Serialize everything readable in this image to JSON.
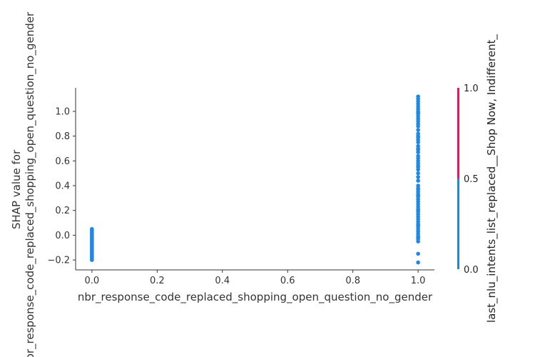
{
  "chart_data": {
    "type": "scatter",
    "title": "",
    "xlabel": "nbr_response_code_replaced_shopping_open_question_no_gender",
    "ylabel_lines": [
      "SHAP value for",
      "nbr_response_code_replaced_shopping_open_question_no_gender"
    ],
    "xlim": [
      -0.05,
      1.05
    ],
    "ylim": [
      -0.28,
      1.19
    ],
    "xticks": [
      "0.0",
      "0.2",
      "0.4",
      "0.6",
      "0.8",
      "1.0"
    ],
    "xtick_values": [
      0.0,
      0.2,
      0.4,
      0.6,
      0.8,
      1.0
    ],
    "yticks": [
      "−0.2",
      "0.0",
      "0.2",
      "0.4",
      "0.6",
      "0.8",
      "1.0"
    ],
    "ytick_values": [
      -0.2,
      0.0,
      0.2,
      0.4,
      0.6,
      0.8,
      1.0
    ],
    "grid": false,
    "point_color": "#1e88e5",
    "series": [
      {
        "x": [
          0,
          0,
          0,
          0,
          0,
          0,
          0,
          0,
          0,
          0,
          0,
          0,
          0,
          0,
          0,
          0,
          0,
          0,
          0,
          0,
          0,
          0,
          0,
          0,
          0,
          0
        ],
        "y": [
          0.05,
          0.04,
          0.03,
          0.02,
          0.01,
          0.0,
          -0.01,
          -0.02,
          -0.03,
          -0.04,
          -0.05,
          -0.06,
          -0.07,
          -0.08,
          -0.09,
          -0.1,
          -0.11,
          -0.12,
          -0.13,
          -0.14,
          -0.15,
          -0.16,
          -0.17,
          -0.18,
          -0.19,
          -0.2
        ]
      },
      {
        "x": [
          1,
          1,
          1,
          1,
          1,
          1,
          1,
          1,
          1,
          1,
          1,
          1,
          1,
          1,
          1,
          1,
          1,
          1,
          1,
          1,
          1,
          1,
          1,
          1,
          1,
          1,
          1,
          1,
          1,
          1,
          1,
          1,
          1,
          1,
          1,
          1,
          1,
          1,
          1,
          1,
          1,
          1,
          1,
          1,
          1,
          1,
          1,
          1,
          1,
          1,
          1,
          1,
          1,
          1,
          1,
          1,
          1,
          1,
          1,
          1,
          1,
          1,
          1,
          1
        ],
        "y": [
          1.12,
          1.1,
          1.08,
          1.06,
          1.04,
          1.02,
          1.0,
          0.98,
          0.96,
          0.94,
          0.9,
          0.85,
          0.82,
          0.79,
          0.77,
          0.75,
          0.72,
          0.69,
          0.67,
          0.64,
          0.62,
          0.6,
          0.58,
          0.56,
          0.53,
          0.5,
          0.47,
          0.4,
          0.37,
          0.35,
          0.33,
          0.31,
          0.29,
          0.27,
          0.25,
          0.23,
          0.21,
          0.19,
          0.17,
          0.15,
          0.13,
          0.11,
          0.09,
          0.07,
          0.05,
          0.03,
          0.01,
          -0.01,
          -0.03,
          -0.05,
          -0.15,
          -0.22,
          0.38,
          0.44,
          0.7,
          0.8,
          0.88,
          0.92,
          0.99,
          0.55,
          0.32,
          0.2,
          0.08,
          -0.02
        ]
      }
    ],
    "colorbar": {
      "label": "last_nlu_intents_list_replaced__Shop Now, Indifferent_",
      "ticks": [
        "0.0",
        "0.5",
        "1.0"
      ],
      "tick_values": [
        0.0,
        0.5,
        1.0
      ],
      "colors": [
        "#1e88e5",
        "#ff0d57"
      ]
    }
  }
}
